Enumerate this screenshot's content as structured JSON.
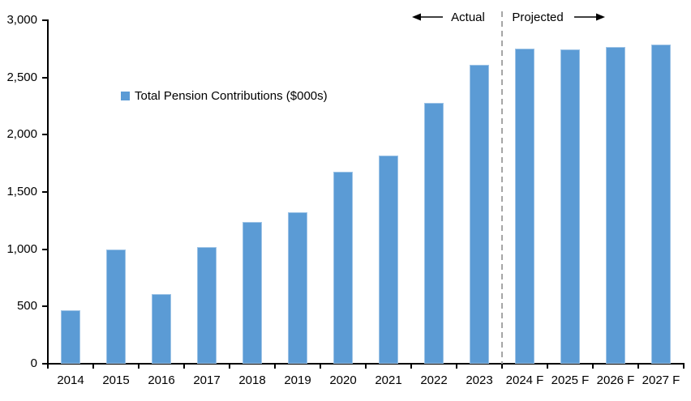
{
  "chart_data": {
    "type": "bar",
    "title": "",
    "legend": "Total Pension Contributions ($000s)",
    "categories": [
      "2014",
      "2015",
      "2016",
      "2017",
      "2018",
      "2019",
      "2020",
      "2021",
      "2022",
      "2023",
      "2024 F",
      "2025 F",
      "2026 F",
      "2027 F"
    ],
    "values": [
      470,
      995,
      610,
      1020,
      1240,
      1320,
      1680,
      1815,
      2280,
      2610,
      2755,
      2745,
      2765,
      2790
    ],
    "xlabel": "",
    "ylabel": "",
    "ylim": [
      0,
      3000
    ],
    "ytick_values": [
      3000,
      2500,
      2000,
      1500,
      1000,
      500,
      0
    ],
    "ytick_labels": [
      "3,000",
      "2,500",
      "2,000",
      "1,500",
      "1,000",
      "500",
      "0"
    ],
    "grid": false,
    "legend_position": "inside-upper-left",
    "annotations": {
      "actual_label": "Actual",
      "projected_label": "Projected",
      "separator_after_index": 9
    }
  },
  "colors": {
    "bar_fill": "#5B9BD5",
    "bar_border": "#9DC3E6",
    "separator": "#A6A6A6",
    "axis": "#000000",
    "text": "#000000",
    "background": "#FFFFFF"
  }
}
